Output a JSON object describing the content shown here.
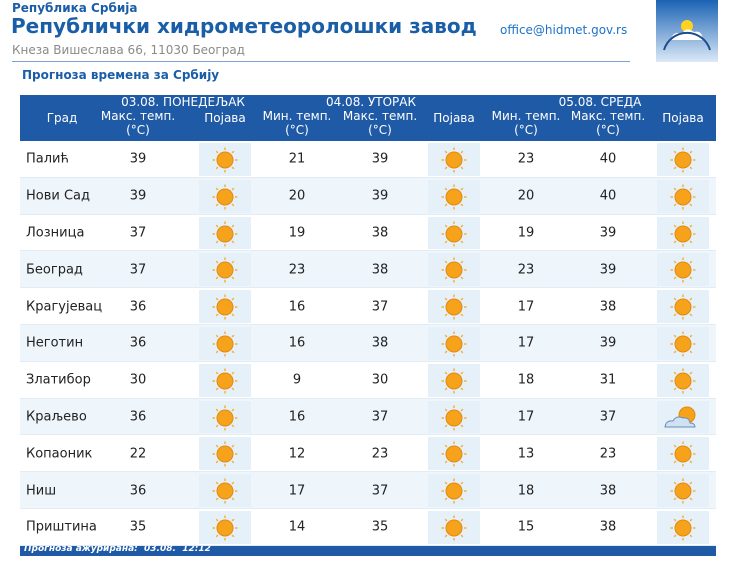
{
  "header": {
    "country": "Република Србија",
    "title": "Републички хидрометеоролошки завод",
    "address": "Кнеза Вишеслава 66, 11030 Београд",
    "email": "office@hidmet.gov.rs"
  },
  "subtitle": "Прогноза времена за Србију",
  "table": {
    "days": [
      "03.08. ПОНЕДЕЉАК",
      "04.08. УТОРАК",
      "05.08. СРЕДА"
    ],
    "columns": [
      "Град",
      "Макс. темп.\n(°C)",
      "Појава",
      "Мин. темп.\n(°C)",
      "Макс. темп.\n(°C)",
      "Појава",
      "Мин. темп.\n(°C)",
      "Макс. темп.\n(°C)",
      "Појава"
    ],
    "rows": [
      [
        "Палић",
        39,
        21,
        39,
        23,
        40
      ],
      [
        "Нови Сад",
        39,
        20,
        39,
        20,
        40
      ],
      [
        "Лозница",
        37,
        19,
        38,
        19,
        39
      ],
      [
        "Београд",
        37,
        23,
        38,
        23,
        39
      ],
      [
        "Крагујевац",
        36,
        16,
        37,
        17,
        38
      ],
      [
        "Неготин",
        36,
        16,
        38,
        17,
        39
      ],
      [
        "Златибор",
        30,
        9,
        30,
        18,
        31
      ],
      [
        "Краљево",
        36,
        16,
        37,
        17,
        37
      ],
      [
        "Копаоник",
        22,
        12,
        23,
        13,
        23
      ],
      [
        "Ниш",
        36,
        17,
        37,
        18,
        38
      ],
      [
        "Приштина",
        35,
        14,
        35,
        15,
        38
      ]
    ]
  },
  "footer": {
    "label": "Прогноза ажурирана:",
    "date": "03.08.",
    "time": "12:12"
  }
}
